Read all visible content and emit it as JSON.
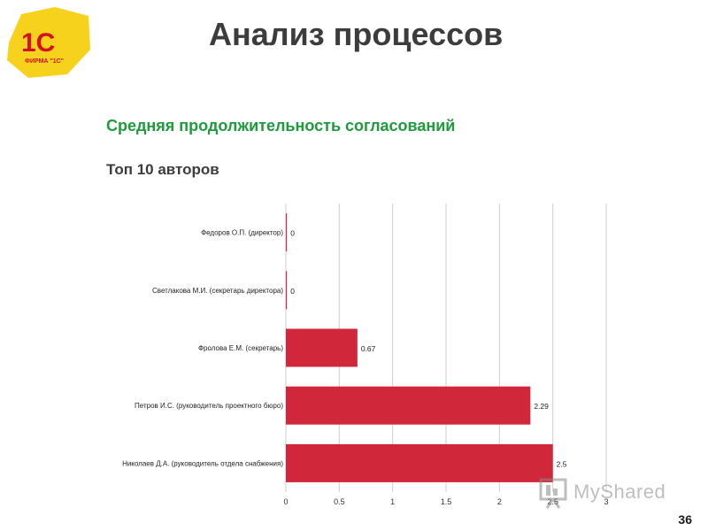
{
  "slide": {
    "title": "Анализ процессов",
    "page_number": "36"
  },
  "logo": {
    "text": "1С",
    "caption": "ФИРМА \"1С\"",
    "icon": "1c-logo-icon",
    "colors": {
      "background": "#f6d21c",
      "text": "#d4121e"
    }
  },
  "watermark": {
    "text": "MyShared",
    "icon": "presentation-icon"
  },
  "chart_data": {
    "type": "bar",
    "orientation": "horizontal",
    "title": "Средняя продолжительность согласований",
    "subtitle": "Топ 10 авторов",
    "categories": [
      "Федоров О.П. (директор)",
      "Светлакова М.И. (секретарь директора)",
      "Фролова Е.М. (секретарь)",
      "Петров И.С. (руководитель проектного бюро)",
      "Николаев Д.А. (руководитель отдела снабжения)"
    ],
    "values": [
      0,
      0,
      0.67,
      2.29,
      2.5
    ],
    "value_labels": [
      "0",
      "0",
      "0.67",
      "2.29",
      "2.5"
    ],
    "xlim": [
      0,
      3
    ],
    "xticks": [
      0,
      0.5,
      1,
      1.5,
      2,
      2.5,
      3
    ],
    "xtick_labels": [
      "0",
      "0.5",
      "1",
      "1.5",
      "2",
      "2.5",
      "3"
    ],
    "grid": true,
    "legend": "none",
    "colors": {
      "bar": "#d0273a",
      "title": "#1f9a3c",
      "grid": "#cfcfcf"
    }
  }
}
